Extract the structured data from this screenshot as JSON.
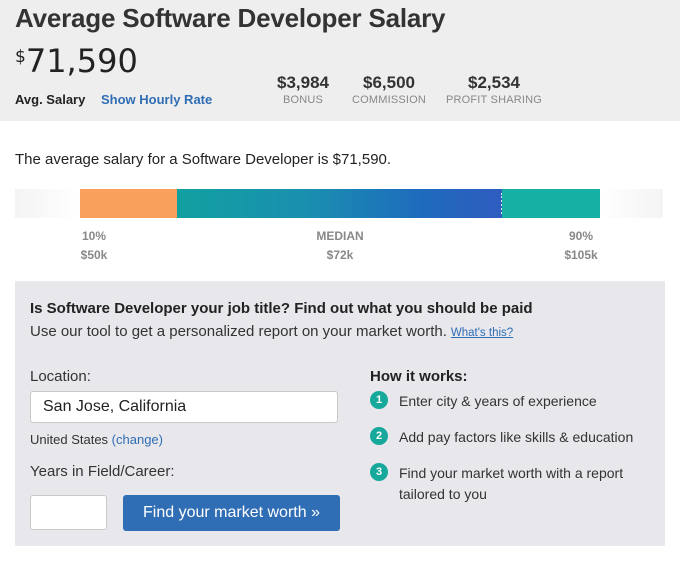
{
  "header": {
    "title": "Average Software Developer Salary",
    "currency_symbol": "$",
    "salary": "71,590",
    "avg_label": "Avg. Salary",
    "hourly_link": "Show Hourly Rate",
    "stats": [
      {
        "value": "$3,984",
        "label": "BONUS"
      },
      {
        "value": "$6,500",
        "label": "COMMISSION"
      },
      {
        "value": "$2,534",
        "label": "PROFIT SHARING"
      }
    ]
  },
  "summary": {
    "sentence": "The average salary for a Software Developer is $71,590."
  },
  "range": {
    "low_pct": "10%",
    "low_value": "$50k",
    "median_label": "MEDIAN",
    "median_value": "$72k",
    "high_pct": "90%",
    "high_value": "$105k",
    "colors": {
      "low": "#f9a15c",
      "mid": "#1a8fb0",
      "high": "#17b0a4"
    }
  },
  "tool": {
    "question": "Is Software Developer your job title? Find out what you should be paid",
    "subtitle": "Use our tool to get a personalized report on your market worth.",
    "whats_this": "What's this?",
    "location_label": "Location:",
    "location_value": "San Jose, California",
    "country": "United States",
    "change": "(change)",
    "years_label": "Years in Field/Career:",
    "years_value": "",
    "button": "Find your market worth »",
    "how_title": "How it works:",
    "steps": [
      {
        "num": "1",
        "text": "Enter city & years of experience"
      },
      {
        "num": "2",
        "text": "Add pay factors like skills & education"
      },
      {
        "num": "3",
        "text": "Find your market worth with a report tailored to you"
      }
    ]
  },
  "colors": {
    "accent": "#2f6db5",
    "step": "#17a89c"
  }
}
